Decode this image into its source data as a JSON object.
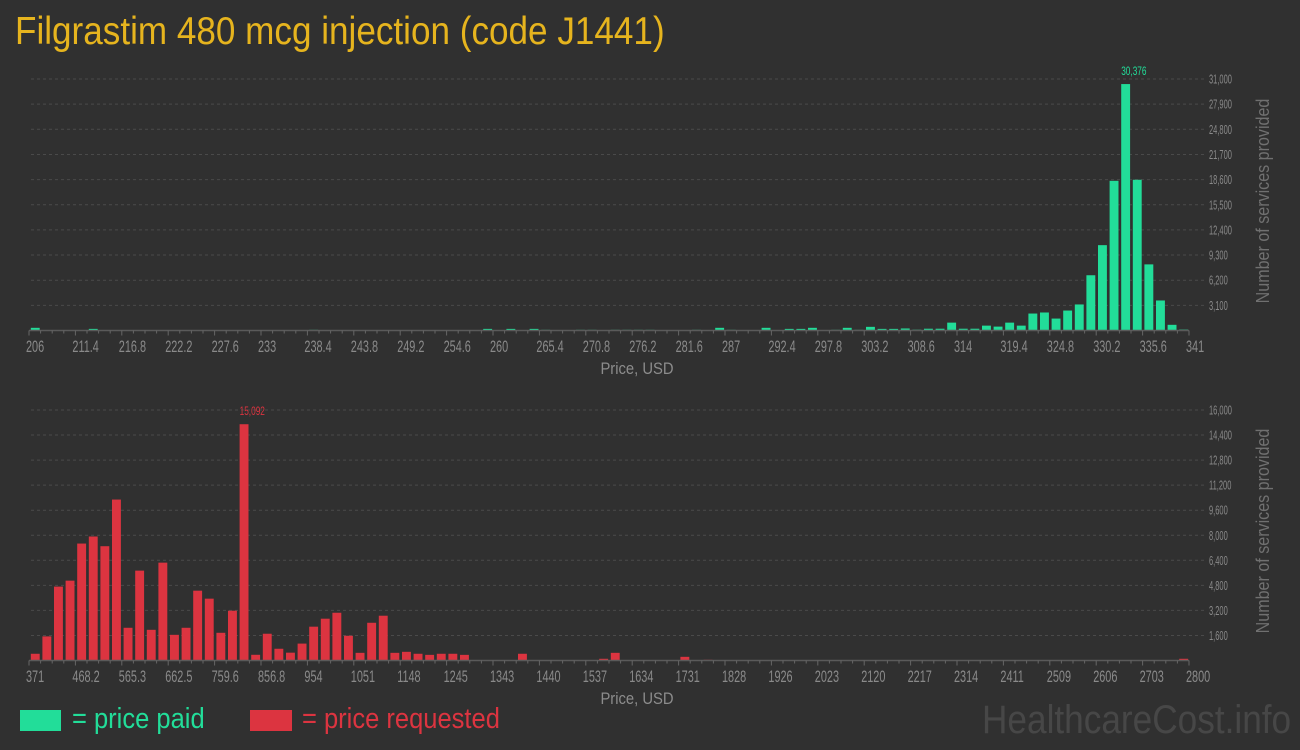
{
  "page": {
    "title": "Filgrastim 480 mcg injection (code J1441)",
    "watermark": "HealthcareCost.info"
  },
  "legend": {
    "items": [
      {
        "label": "= price paid",
        "color": "#22dd99"
      },
      {
        "label": "= price requested",
        "color": "#dc3440"
      }
    ]
  },
  "chart_data": [
    {
      "type": "bar",
      "title": "price paid",
      "xlabel": "Price, USD",
      "ylabel": "Number of services provided",
      "color": "#22dd99",
      "x_range": [
        206,
        341
      ],
      "bin_width": 1.35,
      "ylim": [
        0,
        31000
      ],
      "grid": true,
      "xticks": [
        "206",
        "211.4",
        "216.8",
        "222.2",
        "227.6",
        "233",
        "238.4",
        "243.8",
        "249.2",
        "254.6",
        "260",
        "265.4",
        "270.8",
        "276.2",
        "281.6",
        "287",
        "292.4",
        "297.8",
        "303.2",
        "308.6",
        "314",
        "319.4",
        "324.8",
        "330.2",
        "335.6",
        "341"
      ],
      "yticks": [
        {
          "value": 3100,
          "label": "3,100"
        },
        {
          "value": 6200,
          "label": "6,200"
        },
        {
          "value": 9300,
          "label": "9,300"
        },
        {
          "value": 12400,
          "label": "12,400"
        },
        {
          "value": 15500,
          "label": "15,500"
        },
        {
          "value": 18600,
          "label": "18,600"
        },
        {
          "value": 21700,
          "label": "21,700"
        },
        {
          "value": 24800,
          "label": "24,800"
        },
        {
          "value": 27900,
          "label": "27,900"
        },
        {
          "value": 31000,
          "label": "31,000"
        }
      ],
      "peak": {
        "index": 94,
        "label": "30,376"
      },
      "values": [
        330,
        0,
        0,
        0,
        0,
        200,
        0,
        0,
        0,
        0,
        0,
        0,
        0,
        0,
        0,
        0,
        0,
        0,
        0,
        0,
        0,
        0,
        0,
        0,
        80,
        0,
        0,
        0,
        0,
        0,
        0,
        0,
        0,
        0,
        0,
        0,
        0,
        0,
        0,
        200,
        0,
        200,
        0,
        200,
        80,
        0,
        0,
        80,
        80,
        0,
        80,
        80,
        80,
        80,
        0,
        0,
        0,
        80,
        0,
        330,
        80,
        0,
        0,
        330,
        0,
        200,
        200,
        330,
        0,
        80,
        330,
        80,
        450,
        200,
        200,
        250,
        100,
        220,
        220,
        970,
        220,
        220,
        600,
        480,
        970,
        600,
        2090,
        2220,
        1470,
        2460,
        3210,
        6810,
        10520,
        18450,
        30376,
        18580,
        8150,
        3700,
        700,
        120
      ]
    },
    {
      "type": "bar",
      "title": "price requested",
      "xlabel": "Price, USD",
      "ylabel": "Number of services provided",
      "color": "#dc3440",
      "x_range": [
        371,
        2800
      ],
      "bin_width": 24.29,
      "ylim": [
        0,
        16000
      ],
      "grid": true,
      "xticks": [
        "371",
        "468.2",
        "565.3",
        "662.5",
        "759.6",
        "856.8",
        "954",
        "1051",
        "1148",
        "1245",
        "1343",
        "1440",
        "1537",
        "1634",
        "1731",
        "1828",
        "1926",
        "2023",
        "2120",
        "2217",
        "2314",
        "2411",
        "2509",
        "2606",
        "2703",
        "2800"
      ],
      "yticks": [
        {
          "value": 1600,
          "label": "1,600"
        },
        {
          "value": 3200,
          "label": "3,200"
        },
        {
          "value": 4800,
          "label": "4,800"
        },
        {
          "value": 6400,
          "label": "6,400"
        },
        {
          "value": 8000,
          "label": "8,000"
        },
        {
          "value": 9600,
          "label": "9,600"
        },
        {
          "value": 11200,
          "label": "11,200"
        },
        {
          "value": 12800,
          "label": "12,800"
        },
        {
          "value": 14400,
          "label": "14,400"
        },
        {
          "value": 16000,
          "label": "16,000"
        }
      ],
      "peak": {
        "index": 18,
        "label": "15,092"
      },
      "values": [
        430,
        1540,
        4720,
        5100,
        7470,
        7920,
        7300,
        10280,
        2090,
        5740,
        1960,
        6250,
        1640,
        2090,
        4460,
        3950,
        1770,
        3180,
        15092,
        365,
        1710,
        750,
        500,
        1080,
        2160,
        2670,
        3050,
        1580,
        490,
        2410,
        2860,
        490,
        555,
        430,
        360,
        430,
        430,
        360,
        0,
        0,
        0,
        0,
        430,
        0,
        0,
        0,
        0,
        0,
        0,
        110,
        490,
        0,
        0,
        0,
        0,
        0,
        235,
        0,
        45,
        0,
        0,
        0,
        0,
        0,
        0,
        0,
        0,
        0,
        0,
        0,
        0,
        0,
        0,
        0,
        0,
        0,
        0,
        0,
        0,
        0,
        0,
        0,
        0,
        0,
        0,
        0,
        0,
        0,
        0,
        0,
        0,
        0,
        0,
        0,
        0,
        0,
        0,
        0,
        0,
        110
      ]
    }
  ]
}
